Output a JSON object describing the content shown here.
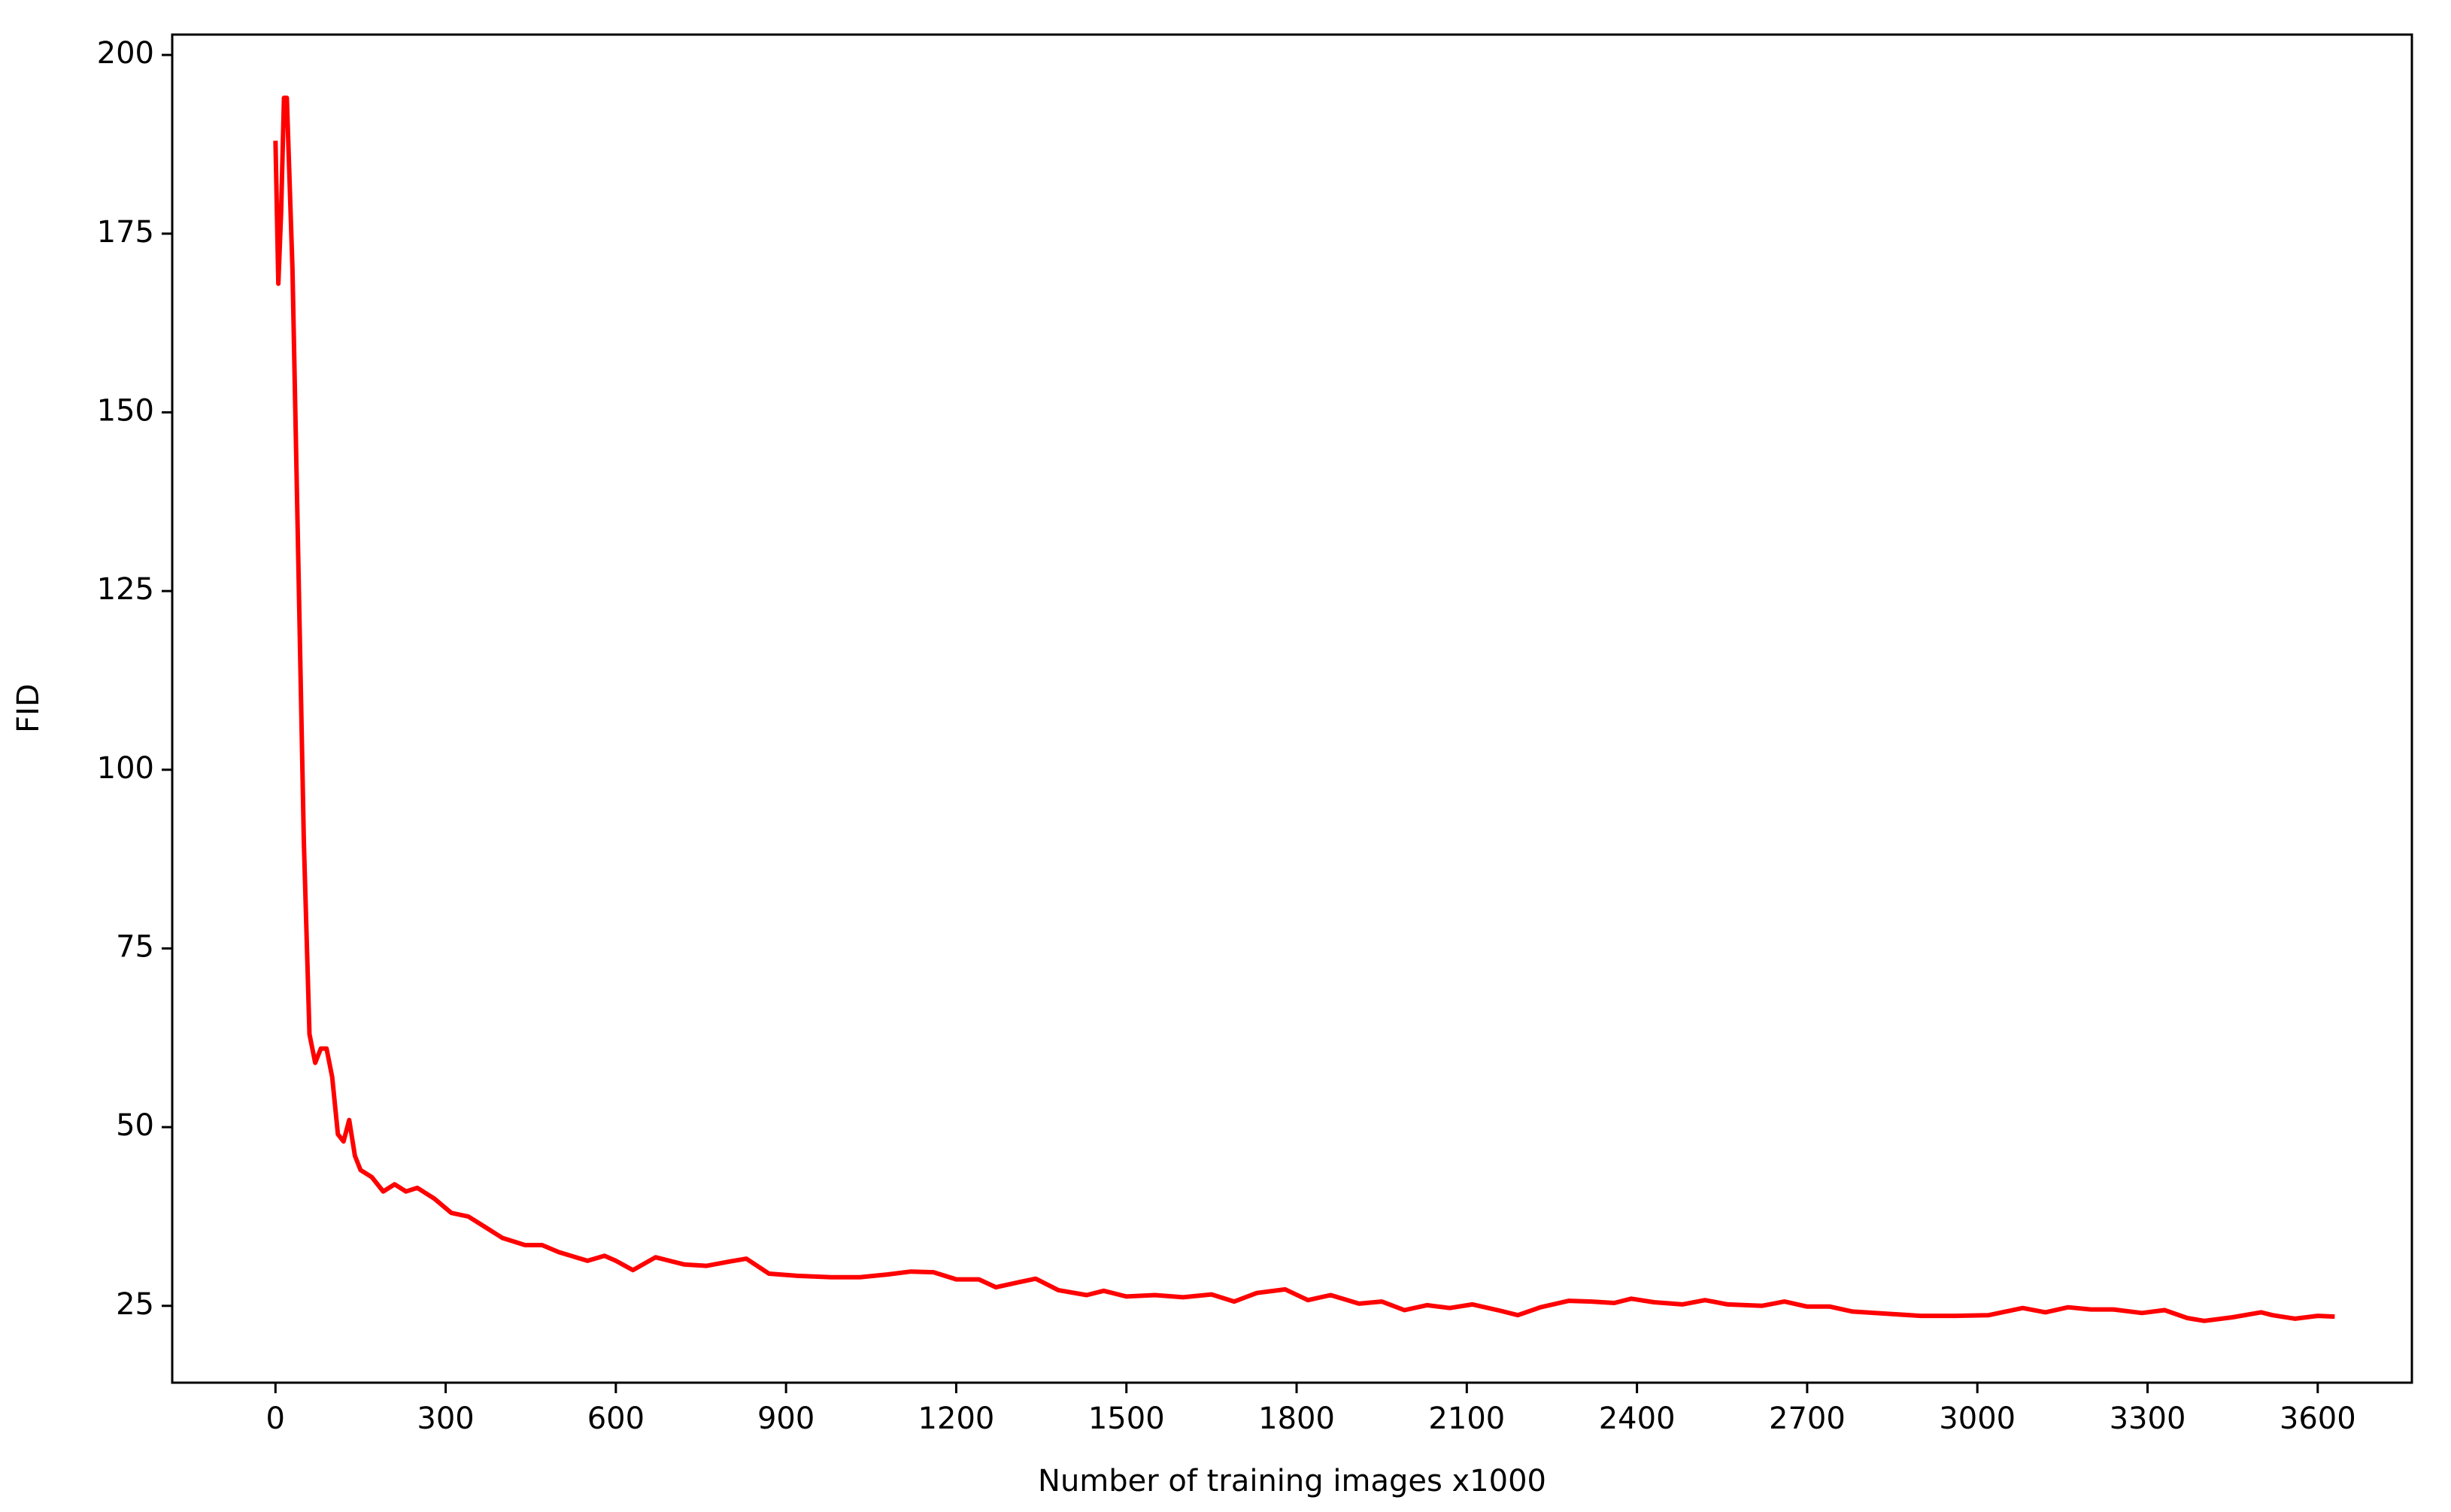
{
  "chart_data": {
    "type": "line",
    "x_label": "Number of training images x1000",
    "y_label": "FID",
    "x": [
      0,
      5,
      10,
      15,
      20,
      30,
      40,
      50,
      60,
      70,
      80,
      90,
      100,
      110,
      120,
      130,
      140,
      150,
      170,
      190,
      210,
      230,
      250,
      280,
      310,
      340,
      370,
      400,
      440,
      470,
      500,
      550,
      580,
      600,
      630,
      670,
      720,
      760,
      800,
      830,
      870,
      920,
      980,
      1030,
      1080,
      1120,
      1160,
      1200,
      1240,
      1270,
      1310,
      1340,
      1380,
      1430,
      1460,
      1500,
      1550,
      1600,
      1650,
      1690,
      1730,
      1780,
      1820,
      1860,
      1910,
      1950,
      1990,
      2030,
      2070,
      2110,
      2160,
      2190,
      2230,
      2280,
      2320,
      2360,
      2390,
      2430,
      2480,
      2520,
      2560,
      2620,
      2660,
      2700,
      2740,
      2780,
      2840,
      2900,
      2960,
      3020,
      3080,
      3120,
      3160,
      3200,
      3240,
      3290,
      3330,
      3370,
      3400,
      3450,
      3500,
      3520,
      3560,
      3600,
      3630
    ],
    "series": [
      {
        "color": "#ff0000",
        "values": [
          188,
          168,
          178,
          194,
          194,
          170,
          130,
          90,
          63,
          59,
          61,
          61,
          57,
          49,
          48,
          51,
          46,
          44,
          43,
          41,
          42,
          41,
          41.5,
          40,
          38,
          37.5,
          36,
          34.5,
          33.5,
          33.5,
          32.5,
          31.3,
          32,
          31.3,
          30,
          31.8,
          30.8,
          30.6,
          31.2,
          31.6,
          29.5,
          29.2,
          29,
          29,
          29.4,
          29.8,
          29.7,
          28.7,
          28.7,
          27.6,
          28.3,
          28.8,
          27.2,
          26.5,
          27.1,
          26.3,
          26.5,
          26.2,
          26.6,
          25.6,
          26.8,
          27.3,
          25.8,
          26.5,
          25.3,
          25.6,
          24.4,
          25.1,
          24.7,
          25.2,
          24.3,
          23.7,
          24.8,
          25.7,
          25.6,
          25.4,
          26,
          25.5,
          25.2,
          25.8,
          25.2,
          25,
          25.6,
          24.9,
          24.9,
          24.2,
          23.9,
          23.6,
          23.6,
          23.7,
          24.7,
          24.1,
          24.8,
          24.5,
          24.5,
          24,
          24.4,
          23.3,
          22.9,
          23.4,
          24.1,
          23.7,
          23.2,
          23.6,
          23.5
        ]
      }
    ],
    "xlim": [
      -182,
      3766
    ],
    "ylim": [
      14.25,
      202.85
    ],
    "xticks": [
      0,
      300,
      600,
      900,
      1200,
      1500,
      1800,
      2100,
      2400,
      2700,
      3000,
      3300,
      3600
    ],
    "yticks": [
      25,
      50,
      75,
      100,
      125,
      150,
      175,
      200
    ]
  }
}
